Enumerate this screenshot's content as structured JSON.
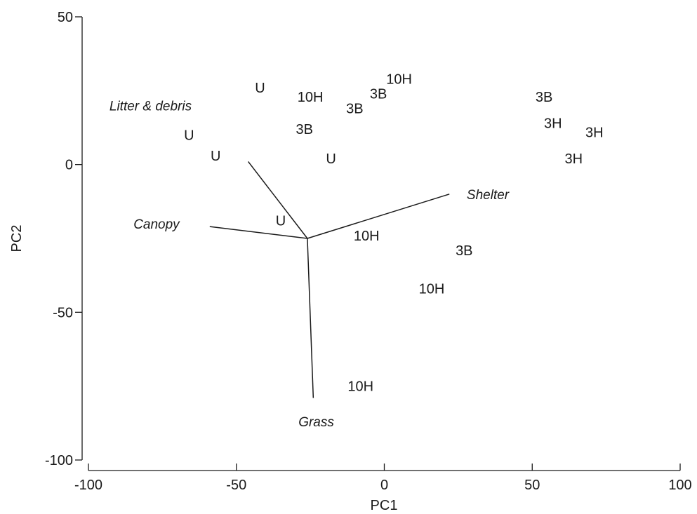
{
  "chart_data": {
    "type": "scatter",
    "title": "",
    "xlabel": "PC1",
    "ylabel": "PC2",
    "xlim": [
      -100,
      100
    ],
    "ylim": [
      -100,
      50
    ],
    "x_ticks": [
      {
        "value": -100,
        "label": "-100"
      },
      {
        "value": -50,
        "label": "-50"
      },
      {
        "value": 0,
        "label": "0"
      },
      {
        "value": 50,
        "label": "50"
      },
      {
        "value": 100,
        "label": "100"
      }
    ],
    "y_ticks": [
      {
        "value": 50,
        "label": "50"
      },
      {
        "value": 0,
        "label": "0"
      },
      {
        "value": -50,
        "label": "-50"
      },
      {
        "value": -100,
        "label": "-100"
      }
    ],
    "points": [
      {
        "label": "U",
        "x": -42,
        "y": 26
      },
      {
        "label": "10H",
        "x": -25,
        "y": 23
      },
      {
        "label": "10H",
        "x": 5,
        "y": 29
      },
      {
        "label": "3B",
        "x": -2,
        "y": 24
      },
      {
        "label": "3B",
        "x": -10,
        "y": 19
      },
      {
        "label": "3B",
        "x": -27,
        "y": 12
      },
      {
        "label": "U",
        "x": -66,
        "y": 10
      },
      {
        "label": "U",
        "x": -57,
        "y": 3
      },
      {
        "label": "U",
        "x": -18,
        "y": 2
      },
      {
        "label": "U",
        "x": -35,
        "y": -19
      },
      {
        "label": "10H",
        "x": -6,
        "y": -24
      },
      {
        "label": "3B",
        "x": 27,
        "y": -29
      },
      {
        "label": "10H",
        "x": 16,
        "y": -42
      },
      {
        "label": "10H",
        "x": -8,
        "y": -75
      },
      {
        "label": "3B",
        "x": 54,
        "y": 23
      },
      {
        "label": "3H",
        "x": 57,
        "y": 14
      },
      {
        "label": "3H",
        "x": 71,
        "y": 11
      },
      {
        "label": "3H",
        "x": 64,
        "y": 2
      }
    ],
    "vectors": {
      "origin": {
        "x": -26,
        "y": -25
      },
      "items": [
        {
          "label": "Litter & debris",
          "end": {
            "x": -46,
            "y": 1
          },
          "label_pos": {
            "x": -79,
            "y": 20
          }
        },
        {
          "label": "Shelter",
          "end": {
            "x": 22,
            "y": -10
          },
          "label_pos": {
            "x": 35,
            "y": -10
          }
        },
        {
          "label": "Canopy",
          "end": {
            "x": -59,
            "y": -21
          },
          "label_pos": {
            "x": -77,
            "y": -20
          }
        },
        {
          "label": "Grass",
          "end": {
            "x": -24,
            "y": -79
          },
          "label_pos": {
            "x": -23,
            "y": -87
          }
        }
      ]
    }
  }
}
